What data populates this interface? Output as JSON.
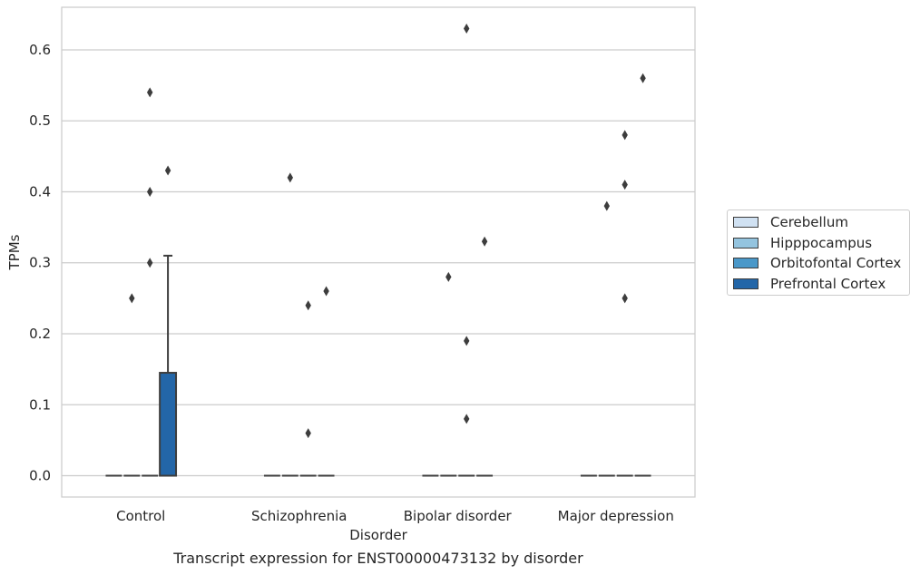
{
  "chart_data": {
    "type": "box",
    "xlabel": "Disorder",
    "ylabel": "TPMs",
    "caption": "Transcript expression for ENST00000473132 by disorder",
    "categories": [
      "Control",
      "Schizophrenia",
      "Bipolar disorder",
      "Major depression"
    ],
    "ylim": [
      -0.03,
      0.66
    ],
    "yticks": [
      0.0,
      0.1,
      0.2,
      0.3,
      0.4,
      0.5,
      0.6
    ],
    "ytick_labels": [
      "0.0",
      "0.1",
      "0.2",
      "0.3",
      "0.4",
      "0.5",
      "0.6"
    ],
    "grid": "horizontal",
    "legend_position": "right",
    "series": [
      {
        "name": "Cerebellum",
        "color": "#d0e1f2",
        "boxes": [
          {
            "q1": 0,
            "median": 0,
            "q3": 0,
            "whisker_low": 0,
            "whisker_high": 0,
            "outliers": []
          },
          {
            "q1": 0,
            "median": 0,
            "q3": 0,
            "whisker_low": 0,
            "whisker_high": 0,
            "outliers": []
          },
          {
            "q1": 0,
            "median": 0,
            "q3": 0,
            "whisker_low": 0,
            "whisker_high": 0,
            "outliers": []
          },
          {
            "q1": 0,
            "median": 0,
            "q3": 0,
            "whisker_low": 0,
            "whisker_high": 0,
            "outliers": []
          }
        ]
      },
      {
        "name": "Hipppocampus",
        "color": "#94c4df",
        "boxes": [
          {
            "q1": 0,
            "median": 0,
            "q3": 0,
            "whisker_low": 0,
            "whisker_high": 0,
            "outliers": [
              0.25
            ]
          },
          {
            "q1": 0,
            "median": 0,
            "q3": 0,
            "whisker_low": 0,
            "whisker_high": 0,
            "outliers": [
              0.42
            ]
          },
          {
            "q1": 0,
            "median": 0,
            "q3": 0,
            "whisker_low": 0,
            "whisker_high": 0,
            "outliers": [
              0.28
            ]
          },
          {
            "q1": 0,
            "median": 0,
            "q3": 0,
            "whisker_low": 0,
            "whisker_high": 0,
            "outliers": [
              0.38
            ]
          }
        ]
      },
      {
        "name": "Orbitofontal Cortex",
        "color": "#4a98c9",
        "boxes": [
          {
            "q1": 0,
            "median": 0,
            "q3": 0,
            "whisker_low": 0,
            "whisker_high": 0,
            "outliers": [
              0.54,
              0.4,
              0.3
            ]
          },
          {
            "q1": 0,
            "median": 0,
            "q3": 0,
            "whisker_low": 0,
            "whisker_high": 0,
            "outliers": [
              0.24,
              0.06
            ]
          },
          {
            "q1": 0,
            "median": 0,
            "q3": 0,
            "whisker_low": 0,
            "whisker_high": 0,
            "outliers": [
              0.63,
              0.19,
              0.08
            ]
          },
          {
            "q1": 0,
            "median": 0,
            "q3": 0,
            "whisker_low": 0,
            "whisker_high": 0,
            "outliers": [
              0.41,
              0.48,
              0.25
            ]
          }
        ]
      },
      {
        "name": "Prefrontal Cortex",
        "color": "#2366a8",
        "boxes": [
          {
            "q1": 0,
            "median": 0,
            "q3": 0.145,
            "whisker_low": 0,
            "whisker_high": 0.31,
            "outliers": [
              0.43
            ]
          },
          {
            "q1": 0,
            "median": 0,
            "q3": 0,
            "whisker_low": 0,
            "whisker_high": 0,
            "outliers": [
              0.26
            ]
          },
          {
            "q1": 0,
            "median": 0,
            "q3": 0,
            "whisker_low": 0,
            "whisker_high": 0,
            "outliers": [
              0.33
            ]
          },
          {
            "q1": 0,
            "median": 0,
            "q3": 0,
            "whisker_low": 0,
            "whisker_high": 0,
            "outliers": [
              0.56
            ]
          }
        ]
      }
    ]
  }
}
